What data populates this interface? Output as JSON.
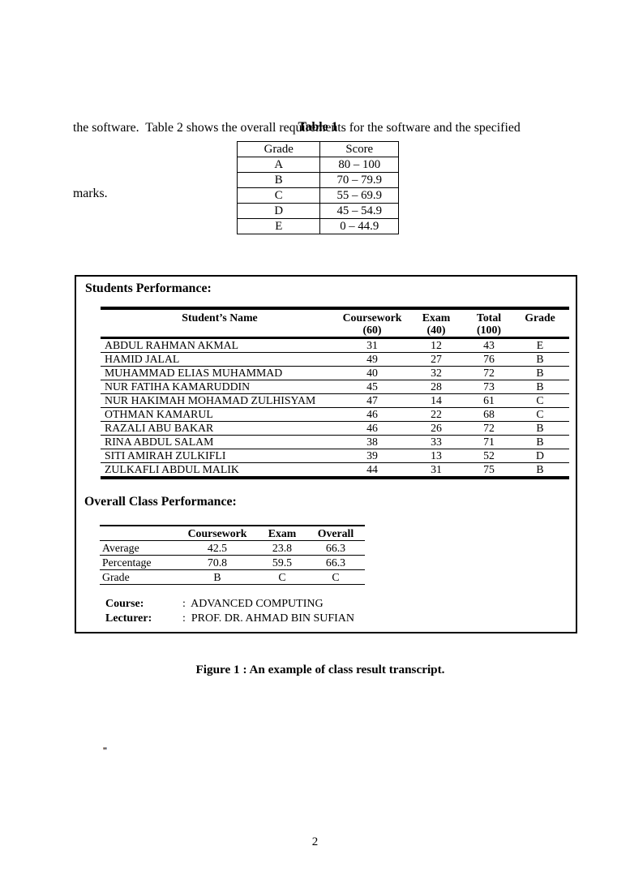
{
  "page": {
    "intro_lines": [
      "the software.  Table 2 shows the overall requirements for the software and the specified",
      "marks."
    ],
    "figure_caption": "Figure 1 : An example of class result transcript.",
    "stray_mark": "\"",
    "page_number": "2"
  },
  "table1": {
    "title": "Table 1",
    "headers": {
      "grade": "Grade",
      "score": "Score"
    },
    "rows": [
      {
        "grade": "A",
        "score": "80 – 100"
      },
      {
        "grade": "B",
        "score": "70 – 79.9"
      },
      {
        "grade": "C",
        "score": "55 – 69.9"
      },
      {
        "grade": "D",
        "score": "45 – 54.9"
      },
      {
        "grade": "E",
        "score": "0 – 44.9"
      }
    ]
  },
  "transcript": {
    "students_heading": "Students Performance:",
    "students_table": {
      "name_header": "Student’s Name",
      "col_headers": {
        "coursework_l1": "Coursework",
        "coursework_l2": "(60)",
        "exam_l1": "Exam",
        "exam_l2": "(40)",
        "total_l1": "Total",
        "total_l2": "(100)",
        "grade_l1": "Grade",
        "grade_l2": ""
      },
      "rows": [
        {
          "name": "ABDUL RAHMAN AKMAL",
          "coursework": "31",
          "exam": "12",
          "total": "43",
          "grade": "E"
        },
        {
          "name": "HAMID JALAL",
          "coursework": "49",
          "exam": "27",
          "total": "76",
          "grade": "B"
        },
        {
          "name": "MUHAMMAD ELIAS MUHAMMAD",
          "coursework": "40",
          "exam": "32",
          "total": "72",
          "grade": "B"
        },
        {
          "name": "NUR FATIHA KAMARUDDIN",
          "coursework": "45",
          "exam": "28",
          "total": "73",
          "grade": "B"
        },
        {
          "name": "NUR HAKIMAH MOHAMAD ZULHISYAM",
          "coursework": "47",
          "exam": "14",
          "total": "61",
          "grade": "C"
        },
        {
          "name": "OTHMAN KAMARUL",
          "coursework": "46",
          "exam": "22",
          "total": "68",
          "grade": "C"
        },
        {
          "name": "RAZALI ABU BAKAR",
          "coursework": "46",
          "exam": "26",
          "total": "72",
          "grade": "B"
        },
        {
          "name": "RINA ABDUL SALAM",
          "coursework": "38",
          "exam": "33",
          "total": "71",
          "grade": "B"
        },
        {
          "name": "SITI AMIRAH ZULKIFLI",
          "coursework": "39",
          "exam": "13",
          "total": "52",
          "grade": "D"
        },
        {
          "name": "ZULKAFLI ABDUL MALIK",
          "coursework": "44",
          "exam": "31",
          "total": "75",
          "grade": "B"
        }
      ]
    },
    "overall_heading": "Overall Class Performance:",
    "overall_table": {
      "headers": {
        "coursework": "Coursework",
        "exam": "Exam",
        "overall": "Overall"
      },
      "rows": [
        {
          "label": "Average",
          "coursework": "42.5",
          "exam": "23.8",
          "overall": "66.3"
        },
        {
          "label": "Percentage",
          "coursework": "70.8",
          "exam": "59.5",
          "overall": "66.3"
        },
        {
          "label": "Grade",
          "coursework": "B",
          "exam": "C",
          "overall": "C"
        }
      ]
    },
    "course_label": "Course:",
    "course_value": ":  ADVANCED COMPUTING",
    "lecturer_label": "Lecturer:",
    "lecturer_value": ":  PROF. DR. AHMAD BIN SUFIAN"
  }
}
